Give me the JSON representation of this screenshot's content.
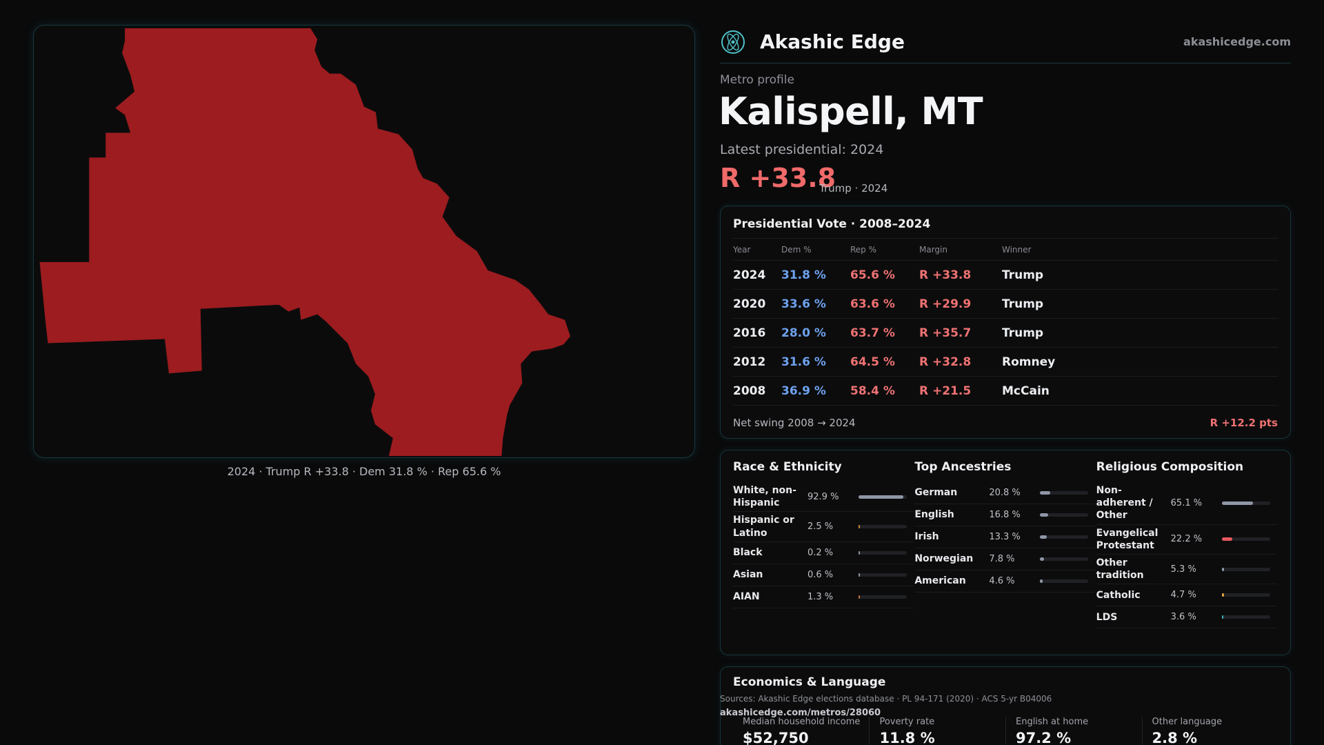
{
  "map": {
    "caption": "2024 · Trump R +33.8 · Dem 31.8 % · Rep 65.6 %",
    "fill_color": "#9c1c1f"
  },
  "brand": {
    "name": "Akashic Edge",
    "url": "akashicedge.com",
    "logo_icon": "atom-icon"
  },
  "profile": {
    "eyebrow": "Metro profile",
    "title": "Kalispell, MT",
    "latest_label": "Latest presidential: 2024",
    "margin": "R +33.8",
    "margin_sub": "Trump · 2024"
  },
  "vote": {
    "title": "Presidential Vote · 2008–2024",
    "headers": [
      "Year",
      "Dem %",
      "Rep %",
      "Margin",
      "Winner"
    ],
    "rows": [
      {
        "year": "2024",
        "dem": "31.8 %",
        "rep": "65.6 %",
        "margin": "R +33.8",
        "winner": "Trump"
      },
      {
        "year": "2020",
        "dem": "33.6 %",
        "rep": "63.6 %",
        "margin": "R +29.9",
        "winner": "Trump"
      },
      {
        "year": "2016",
        "dem": "28.0 %",
        "rep": "63.7 %",
        "margin": "R +35.7",
        "winner": "Trump"
      },
      {
        "year": "2012",
        "dem": "31.6 %",
        "rep": "64.5 %",
        "margin": "R +32.8",
        "winner": "Romney"
      },
      {
        "year": "2008",
        "dem": "36.9 %",
        "rep": "58.4 %",
        "margin": "R +21.5",
        "winner": "McCain"
      }
    ],
    "swing_label": "Net swing 2008 → 2024",
    "swing_value": "R +12.2 pts"
  },
  "race": {
    "title": "Race & Ethnicity",
    "rows": [
      {
        "label": "White, non-Hispanic",
        "value": "92.9 %",
        "fraction": 0.929,
        "color": "#8f96a6"
      },
      {
        "label": "Hispanic or Latino",
        "value": "2.5 %",
        "fraction": 0.025,
        "color": "#d08a3a"
      },
      {
        "label": "Black",
        "value": "0.2 %",
        "fraction": 0.002,
        "color": "#8f96a6"
      },
      {
        "label": "Asian",
        "value": "0.6 %",
        "fraction": 0.006,
        "color": "#8f96a6"
      },
      {
        "label": "AIAN",
        "value": "1.3 %",
        "fraction": 0.013,
        "color": "#c0703a"
      }
    ]
  },
  "ancestry": {
    "title": "Top Ancestries",
    "rows": [
      {
        "label": "German",
        "value": "20.8 %",
        "fraction": 0.208,
        "color": "#8f96a6"
      },
      {
        "label": "English",
        "value": "16.8 %",
        "fraction": 0.168,
        "color": "#8f96a6"
      },
      {
        "label": "Irish",
        "value": "13.3 %",
        "fraction": 0.133,
        "color": "#8f96a6"
      },
      {
        "label": "Norwegian",
        "value": "7.8 %",
        "fraction": 0.078,
        "color": "#8f96a6"
      },
      {
        "label": "American",
        "value": "4.6 %",
        "fraction": 0.046,
        "color": "#8f96a6"
      }
    ]
  },
  "religion": {
    "title": "Religious Composition",
    "rows": [
      {
        "label": "Non-adherent / Other",
        "value": "65.1 %",
        "fraction": 0.651,
        "color": "#8f96a6"
      },
      {
        "label": "Evangelical Protestant",
        "value": "22.2 %",
        "fraction": 0.222,
        "color": "#e8585e"
      },
      {
        "label": "Other tradition",
        "value": "5.3 %",
        "fraction": 0.053,
        "color": "#8f96a6"
      },
      {
        "label": "Catholic",
        "value": "4.7 %",
        "fraction": 0.047,
        "color": "#e0a63a"
      },
      {
        "label": "LDS",
        "value": "3.6 %",
        "fraction": 0.036,
        "color": "#3ab3b8"
      }
    ]
  },
  "economics": {
    "title": "Economics & Language",
    "cells": [
      {
        "label": "Median household income",
        "value": "$52,750"
      },
      {
        "label": "Poverty rate",
        "value": "11.8 %"
      },
      {
        "label": "English at home",
        "value": "97.2 %"
      },
      {
        "label": "Other language",
        "value": "2.8 %"
      }
    ]
  },
  "footer": {
    "sources": "Sources: Akashic Edge elections database · PL 94-171 (2020) · ACS 5-yr B04006",
    "permalink": "akashicedge.com/metros/28060"
  }
}
